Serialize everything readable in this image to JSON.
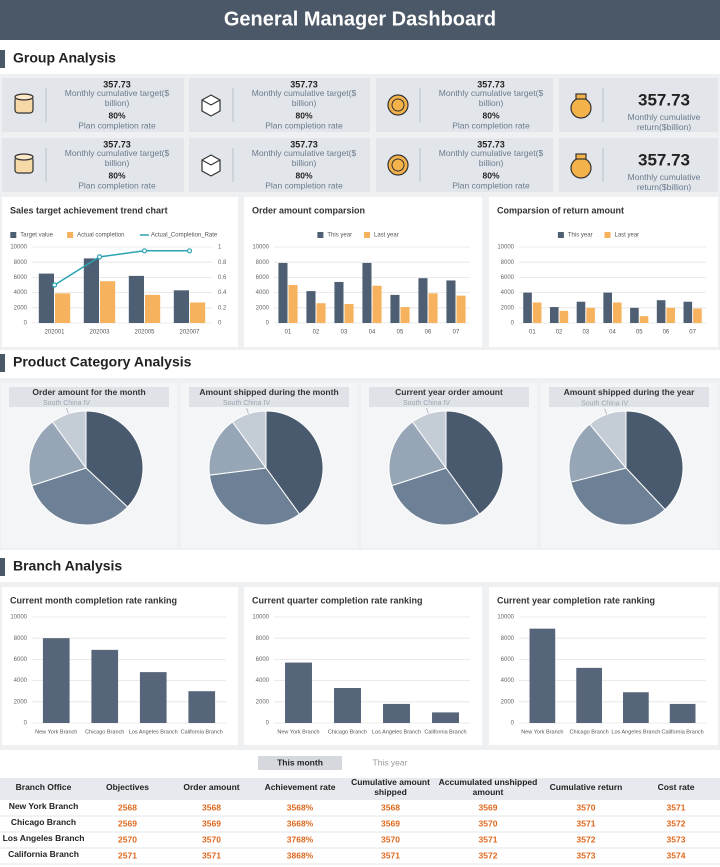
{
  "header": {
    "title": "General Manager Dashboard"
  },
  "sections": [
    "Group Analysis",
    "Product Category Analysis",
    "Branch Analysis"
  ],
  "kpis": [
    {
      "value": "357.73",
      "label": "Monthly cumulative target($ billion)",
      "rate": "80%",
      "rate_label": "Plan completion rate"
    },
    {
      "value": "357.73",
      "label": "Monthly cumulative target($ billion)",
      "rate": "80%",
      "rate_label": "Plan completion rate"
    },
    {
      "value": "357.73",
      "label": "Monthly cumulative target($ billion)",
      "rate": "80%",
      "rate_label": "Plan completion rate"
    },
    {
      "value": "357.73",
      "label": "Monthly cumulative return($billion)"
    },
    {
      "value": "357.73",
      "label": "Monthly cumulative target($ billion)",
      "rate": "80%",
      "rate_label": "Plan completion rate"
    },
    {
      "value": "357.73",
      "label": "Monthly cumulative target($ billion)",
      "rate": "80%",
      "rate_label": "Plan completion rate"
    },
    {
      "value": "357.73",
      "label": "Monthly cumulative target($ billion)",
      "rate": "80%",
      "rate_label": "Plan completion rate"
    },
    {
      "value": "357.73",
      "label": "Monthly cumulative return($billion)"
    }
  ],
  "chart_data": [
    {
      "type": "combo",
      "title": "Sales target achievement trend chart",
      "legend": "top",
      "grid": true,
      "categories": [
        "202001",
        "202003",
        "202005",
        "202007"
      ],
      "series": [
        {
          "name": "Target value",
          "type": "bar",
          "color": "#4f5f73",
          "values": [
            6500,
            8500,
            6200,
            4300
          ]
        },
        {
          "name": "Actual completion",
          "type": "bar",
          "color": "#f7b25e",
          "values": [
            3900,
            5500,
            3700,
            2700
          ]
        },
        {
          "name": "Actual_Completion_Rate",
          "type": "line",
          "axis": "y2",
          "color": "#2aa3b2",
          "values": [
            0.5,
            0.87,
            0.95,
            0.95
          ]
        }
      ],
      "ylim": [
        0,
        10000
      ],
      "yticks": [
        0,
        2000,
        4000,
        6000,
        8000,
        10000
      ],
      "y2lim": [
        0,
        1
      ],
      "y2ticks": [
        0,
        0.2,
        0.4,
        0.6,
        0.8,
        1
      ]
    },
    {
      "type": "bar",
      "title": "Order amount comparsion",
      "legend": "top",
      "grid": true,
      "categories": [
        "01",
        "02",
        "03",
        "04",
        "05",
        "06",
        "07"
      ],
      "series": [
        {
          "name": "This year",
          "color": "#4f5f73",
          "values": [
            7900,
            4200,
            5400,
            7900,
            3700,
            5900,
            5600
          ]
        },
        {
          "name": "Last year",
          "color": "#f7b25e",
          "values": [
            5000,
            2600,
            2500,
            4900,
            2100,
            3900,
            3600
          ]
        }
      ],
      "ylim": [
        0,
        10000
      ],
      "yticks": [
        0,
        2000,
        4000,
        6000,
        8000,
        10000
      ]
    },
    {
      "type": "bar",
      "title": "Comparsion of return amount",
      "legend": "top",
      "grid": true,
      "categories": [
        "01",
        "02",
        "03",
        "04",
        "05",
        "06",
        "07"
      ],
      "series": [
        {
          "name": "This year",
          "color": "#4f5f73",
          "values": [
            4000,
            2100,
            2800,
            4000,
            2000,
            3000,
            2800
          ]
        },
        {
          "name": "Last year",
          "color": "#f7b25e",
          "values": [
            2700,
            1600,
            2000,
            2700,
            900,
            2000,
            1900
          ]
        }
      ],
      "ylim": [
        0,
        10000
      ],
      "yticks": [
        0,
        2000,
        4000,
        6000,
        8000,
        10000
      ]
    },
    {
      "type": "pie",
      "title": "Order amount for the month",
      "categories": [
        null,
        null,
        null,
        "South China IV"
      ],
      "values": [
        37,
        33,
        20,
        10
      ],
      "colors": [
        "#4a5a6e",
        "#6e8096",
        "#97a6b6",
        "#c4ccd6"
      ]
    },
    {
      "type": "pie",
      "title": "Amount shipped during the month",
      "categories": [
        null,
        null,
        null,
        "South China IV"
      ],
      "values": [
        40,
        33,
        17,
        10
      ],
      "colors": [
        "#4a5a6e",
        "#6e8096",
        "#97a6b6",
        "#c4ccd6"
      ]
    },
    {
      "type": "pie",
      "title": "Current year order amount",
      "categories": [
        null,
        null,
        null,
        "South China IV"
      ],
      "values": [
        40,
        30,
        20,
        10
      ],
      "colors": [
        "#4a5a6e",
        "#6e8096",
        "#97a6b6",
        "#c4ccd6"
      ]
    },
    {
      "type": "pie",
      "title": "Amount shipped during the year",
      "categories": [
        null,
        null,
        null,
        "South China IV"
      ],
      "values": [
        38,
        33,
        18,
        11
      ],
      "colors": [
        "#4a5a6e",
        "#6e8096",
        "#97a6b6",
        "#c4ccd6"
      ]
    },
    {
      "type": "bar",
      "title": "Current month completion rate ranking",
      "grid": true,
      "color": "#56657a",
      "categories": [
        "New York Branch",
        "Chicago Branch",
        "Los Angeles Branch",
        "California Branch"
      ],
      "values": [
        8000,
        6900,
        4800,
        3000
      ],
      "ylim": [
        0,
        10000
      ],
      "yticks": [
        0,
        2000,
        4000,
        6000,
        8000,
        10000
      ]
    },
    {
      "type": "bar",
      "title": "Current quarter completion rate ranking",
      "grid": true,
      "color": "#56657a",
      "categories": [
        "New York Branch",
        "Chicago Branch",
        "Los Angeles Branch",
        "California Branch"
      ],
      "values": [
        5700,
        3300,
        1800,
        1000
      ],
      "ylim": [
        0,
        10000
      ],
      "yticks": [
        0,
        2000,
        4000,
        6000,
        8000,
        10000
      ]
    },
    {
      "type": "bar",
      "title": "Current year completion rate ranking",
      "grid": true,
      "color": "#56657a",
      "categories": [
        "New York Branch",
        "Chicago Branch",
        "Los Angeles Branch",
        "California Branch"
      ],
      "values": [
        8900,
        5200,
        2900,
        1800
      ],
      "ylim": [
        0,
        10000
      ],
      "yticks": [
        0,
        2000,
        4000,
        6000,
        8000,
        10000
      ]
    }
  ],
  "tabs": [
    "This month",
    "This year"
  ],
  "table": {
    "header": [
      "Branch Office",
      "Objectives",
      "Order amount",
      "Achievement rate",
      "Cumulative amount shipped",
      "Accumulated unshipped amount",
      "Cumulative return",
      "Cost rate"
    ],
    "rows": [
      [
        "New York Branch",
        "2568",
        "3568",
        "3568%",
        "3568",
        "3569",
        "3570",
        "3571"
      ],
      [
        "Chicago Branch",
        "2569",
        "3569",
        "3668%",
        "3569",
        "3570",
        "3571",
        "3572"
      ],
      [
        "Los Angeles Branch",
        "2570",
        "3570",
        "3768%",
        "3570",
        "3571",
        "3572",
        "3573"
      ],
      [
        "California Branch",
        "2571",
        "3571",
        "3868%",
        "3571",
        "3572",
        "3573",
        "3574"
      ]
    ]
  }
}
